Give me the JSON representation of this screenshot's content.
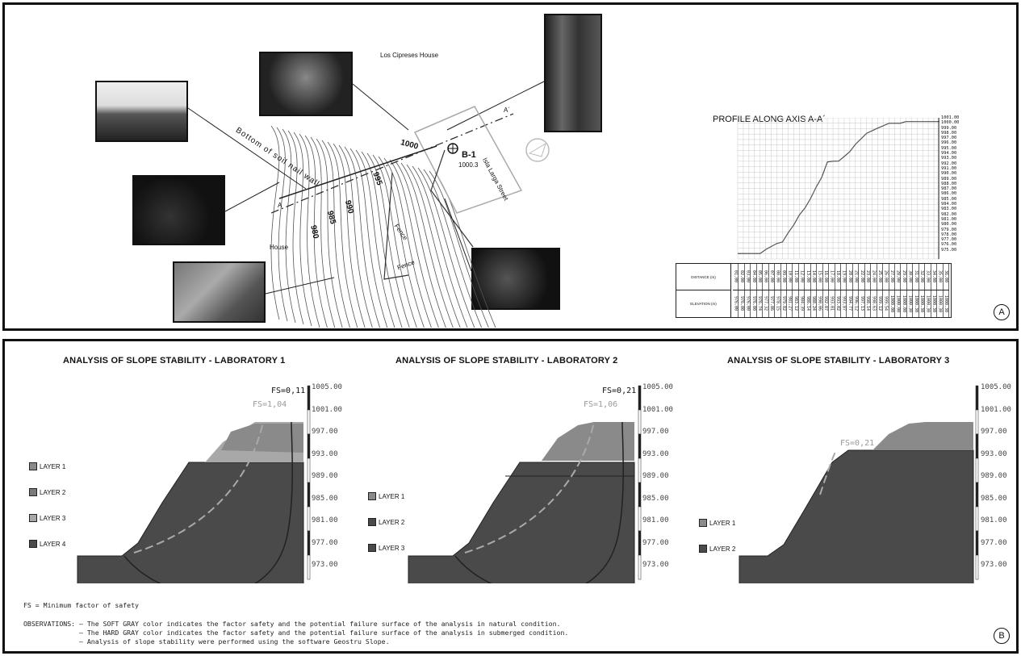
{
  "panel_a": {
    "label": "A",
    "map": {
      "place_los_cipreses": "Los Cipreses House",
      "place_house": "House",
      "borehole_id": "B-1",
      "borehole_elev": "1000.3",
      "street": "Isla Larga Street",
      "bottom_wall": "Bottom of soil nail wall",
      "fence1": "Fence",
      "fence2": "Fence",
      "section_a": "A",
      "section_a_prime": "A´",
      "contour_labels": [
        "1000",
        "995",
        "990",
        "985",
        "980"
      ]
    },
    "profile": {
      "title": "PROFILE ALONG AXIS A-A´",
      "row_distance": "DISTANCE (m)",
      "row_elevation": "ELEVATION (m)",
      "distances": [
        "01.00",
        "02.00",
        "03.00",
        "04.00",
        "05.00",
        "06.00",
        "07.00",
        "08.00",
        "09.00",
        "10.00",
        "11.00",
        "12.00",
        "13.00",
        "14.00",
        "15.00",
        "16.00",
        "17.00",
        "18.00",
        "19.00",
        "20.00",
        "21.00",
        "22.00",
        "23.00",
        "24.00",
        "25.00",
        "26.00",
        "27.00",
        "28.00",
        "29.00",
        "30.00",
        "31.00",
        "32.00",
        "33.00",
        "34.00",
        "35.00",
        "36.00"
      ],
      "elevations": [
        "976.00",
        "976.00",
        "976.00",
        "976.00",
        "976.74",
        "977.32",
        "977.86",
        "978.15",
        "979.82",
        "981.27",
        "983.12",
        "984.39",
        "986.14",
        "988.24",
        "990.06",
        "992.87",
        "993.01",
        "993.02",
        "993.87",
        "994.77",
        "996.12",
        "997.13",
        "998.14",
        "998.63",
        "999.12",
        "999.54",
        "1000.00",
        "1000.00",
        "1000.00",
        "1000.30",
        "1000.30",
        "1000.30",
        "1000.30",
        "1000.30",
        "1000.30",
        "1000.30"
      ],
      "axis_labels": [
        "1001.00",
        "1000.00",
        "999.00",
        "998.00",
        "997.00",
        "996.00",
        "995.00",
        "994.00",
        "993.00",
        "992.00",
        "991.00",
        "990.00",
        "989.00",
        "988.00",
        "987.00",
        "986.00",
        "985.00",
        "984.00",
        "983.00",
        "982.00",
        "981.00",
        "980.00",
        "979.00",
        "978.00",
        "977.00",
        "976.00",
        "975.00"
      ]
    }
  },
  "panel_b": {
    "label": "B",
    "labs": [
      {
        "title": "ANALYSIS OF SLOPE STABILITY - LABORATORY 1",
        "fs_hard": "FS=0,11",
        "fs_soft": "FS=1,04",
        "layers": [
          "LAYER 1",
          "LAYER 2",
          "LAYER 3",
          "LAYER 4"
        ],
        "layer_colors": [
          "#8a8a8a",
          "#7a7a7a",
          "#a8a8a8",
          "#4a4a4a"
        ],
        "scale": [
          "1005.00",
          "1001.00",
          "997.00",
          "993.00",
          "989.00",
          "985.00",
          "981.00",
          "977.00",
          "973.00"
        ]
      },
      {
        "title": "ANALYSIS OF SLOPE STABILITY - LABORATORY 2",
        "fs_hard": "FS=0,21",
        "fs_soft": "FS=1,06",
        "layers": [
          "LAYER 1",
          "LAYER 2",
          "LAYER 3"
        ],
        "layer_colors": [
          "#8a8a8a",
          "#4a4a4a",
          "#4a4a4a"
        ],
        "scale": [
          "1005.00",
          "1001.00",
          "997.00",
          "993.00",
          "989.00",
          "985.00",
          "981.00",
          "977.00",
          "973.00"
        ]
      },
      {
        "title": "ANALYSIS OF SLOPE STABILITY - LABORATORY 3",
        "fs_hard": "",
        "fs_soft": "FS=0,21",
        "layers": [
          "LAYER 1",
          "LAYER 2"
        ],
        "layer_colors": [
          "#8a8a8a",
          "#4a4a4a"
        ],
        "scale": [
          "1005.00",
          "1001.00",
          "997.00",
          "993.00",
          "989.00",
          "985.00",
          "981.00",
          "977.00",
          "973.00"
        ]
      }
    ],
    "notes": {
      "fs_def": "FS = Minimum factor of safety",
      "obs1": "OBSERVATIONS: — The SOFT GRAY color indicates the factor safety and the potential failure surface of the analysis in natural condition.",
      "obs2": "              — The HARD GRAY color indicates the factor safety and the potential failure surface of the analysis in submerged condition.",
      "obs3": "              — Analysis of slope stability were performed using the software Geostru Slope."
    }
  }
}
